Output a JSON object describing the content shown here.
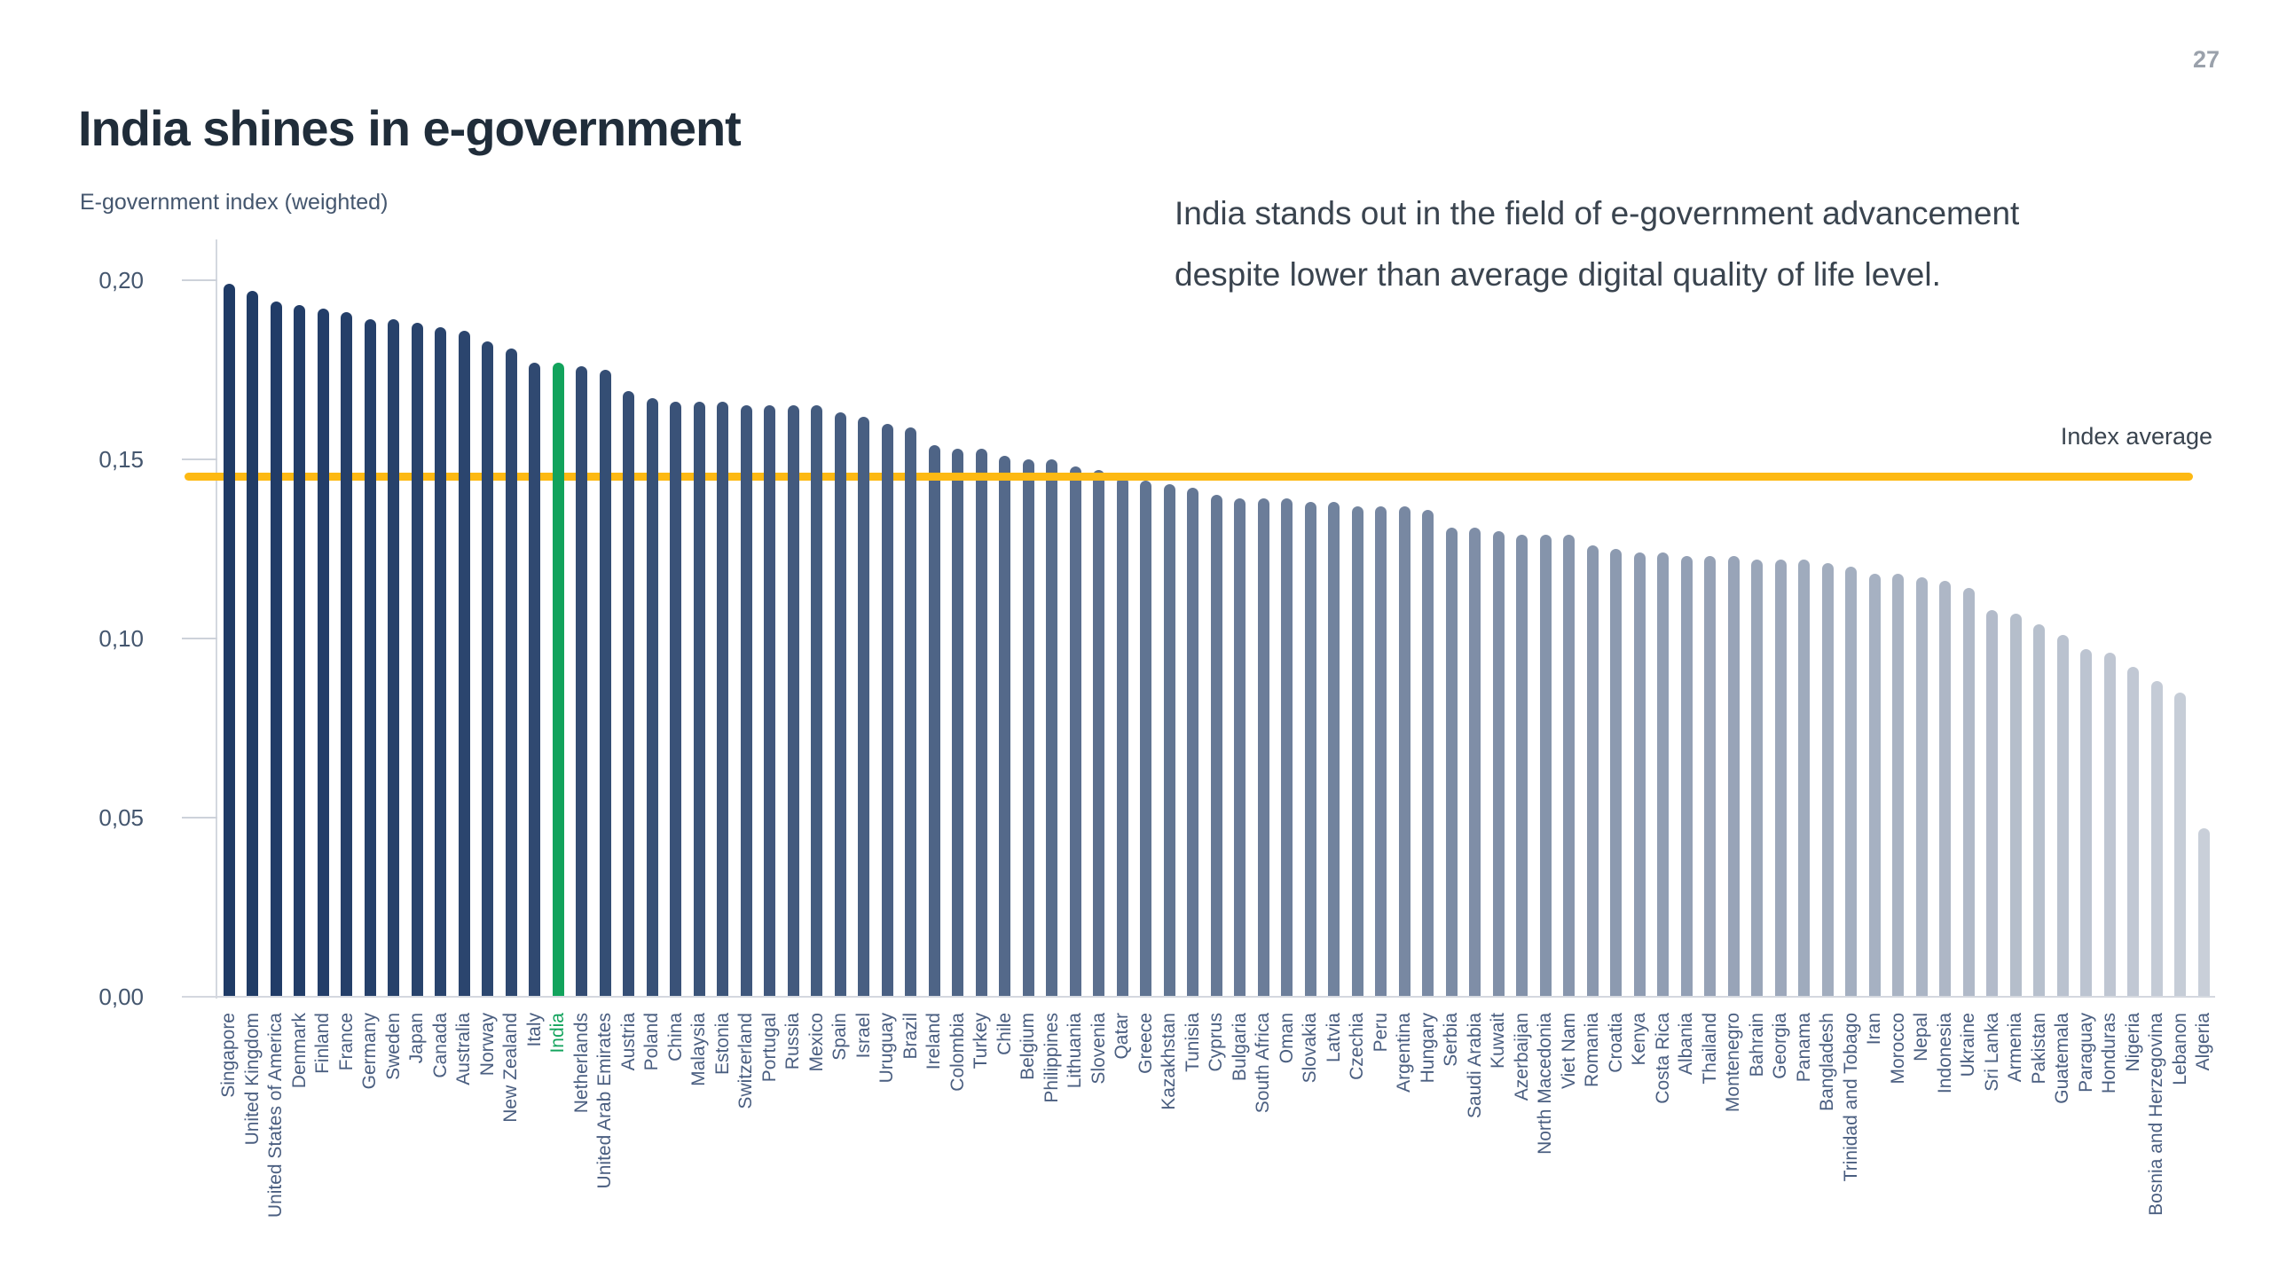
{
  "page": {
    "number": "27"
  },
  "header": {
    "title": "India shines in e-government"
  },
  "annotation": {
    "line1": "India stands out in the field of e-government advancement",
    "line2": "despite lower than average digital quality of life level."
  },
  "chart": {
    "axis_title": "E-government index (weighted)",
    "average_label": "Index average",
    "colors": {
      "bar_dark": "#1F3B66",
      "bar_light": "#C9CFD9",
      "highlight_green": "#12A35C",
      "average_yellow": "#FDB913",
      "label_slate": "#4A5E80"
    }
  },
  "chart_data": {
    "type": "bar",
    "title": "India shines in e-government",
    "xlabel": "",
    "ylabel": "E-government index (weighted)",
    "ylim": [
      0,
      0.21
    ],
    "grid": false,
    "y_ticks": [
      {
        "label": "0,20",
        "value": 0.2
      },
      {
        "label": "0,15",
        "value": 0.15
      },
      {
        "label": "0,10",
        "value": 0.1
      },
      {
        "label": "0,05",
        "value": 0.05
      },
      {
        "label": "0,00",
        "value": 0.0
      }
    ],
    "average_line": {
      "label": "Index average",
      "value": 0.145
    },
    "highlight": {
      "country": "India"
    },
    "categories": [
      "Singapore",
      "United Kingdom",
      "United States of America",
      "Denmark",
      "Finland",
      "France",
      "Germany",
      "Sweden",
      "Japan",
      "Canada",
      "Australia",
      "Norway",
      "New Zealand",
      "Italy",
      "India",
      "Netherlands",
      "United Arab Emirates",
      "Austria",
      "Poland",
      "China",
      "Malaysia",
      "Estonia",
      "Switzerland",
      "Portugal",
      "Russia",
      "Mexico",
      "Spain",
      "Israel",
      "Uruguay",
      "Brazil",
      "Ireland",
      "Colombia",
      "Turkey",
      "Chile",
      "Belgium",
      "Philippines",
      "Lithuania",
      "Slovenia",
      "Qatar",
      "Greece",
      "Kazakhstan",
      "Tunisia",
      "Cyprus",
      "Bulgaria",
      "South Africa",
      "Oman",
      "Slovakia",
      "Latvia",
      "Czechia",
      "Peru",
      "Argentina",
      "Hungary",
      "Serbia",
      "Saudi Arabia",
      "Kuwait",
      "Azerbaijan",
      "North Macedonia",
      "Viet Nam",
      "Romania",
      "Croatia",
      "Kenya",
      "Costa Rica",
      "Albania",
      "Thailand",
      "Montenegro",
      "Bahrain",
      "Georgia",
      "Panama",
      "Bangladesh",
      "Trinidad and Tobago",
      "Iran",
      "Morocco",
      "Nepal",
      "Indonesia",
      "Ukraine",
      "Sri Lanka",
      "Armenia",
      "Pakistan",
      "Guatemala",
      "Paraguay",
      "Honduras",
      "Nigeria",
      "Bosnia and Herzegovina",
      "Lebanon",
      "Algeria"
    ],
    "values": [
      0.199,
      0.197,
      0.194,
      0.193,
      0.192,
      0.191,
      0.189,
      0.189,
      0.188,
      0.187,
      0.186,
      0.183,
      0.181,
      0.177,
      0.177,
      0.176,
      0.175,
      0.169,
      0.167,
      0.166,
      0.166,
      0.166,
      0.165,
      0.165,
      0.165,
      0.165,
      0.163,
      0.162,
      0.16,
      0.159,
      0.154,
      0.153,
      0.153,
      0.151,
      0.15,
      0.15,
      0.148,
      0.147,
      0.145,
      0.144,
      0.143,
      0.142,
      0.14,
      0.139,
      0.139,
      0.139,
      0.138,
      0.138,
      0.137,
      0.137,
      0.137,
      0.136,
      0.131,
      0.131,
      0.13,
      0.129,
      0.129,
      0.129,
      0.126,
      0.125,
      0.124,
      0.124,
      0.123,
      0.123,
      0.123,
      0.122,
      0.122,
      0.122,
      0.121,
      0.12,
      0.118,
      0.118,
      0.117,
      0.116,
      0.114,
      0.108,
      0.107,
      0.104,
      0.101,
      0.097,
      0.096,
      0.092,
      0.088,
      0.085,
      0.047
    ]
  }
}
